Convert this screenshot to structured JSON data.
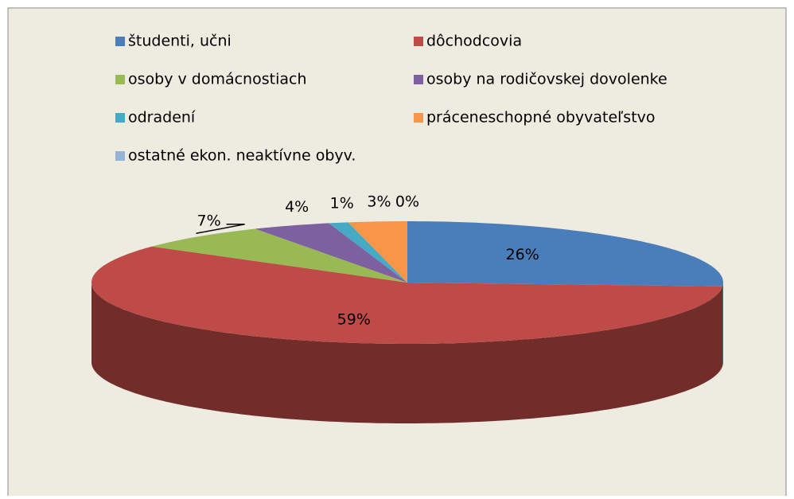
{
  "chart_data": {
    "type": "pie3d",
    "categories": [
      "študenti, učni",
      "dôchodcovia",
      "osoby v domácnostiach",
      "osoby na rodičovskej dovolenke",
      "odradení",
      "práceneschopné obyvateľstvo",
      "ostatné ekon. neaktívne obyv."
    ],
    "values": [
      26,
      59,
      7,
      4,
      1,
      3,
      0
    ],
    "value_labels": [
      "26%",
      "59%",
      "7%",
      "4%",
      "1%",
      "3%",
      "0%"
    ],
    "colors": [
      "#4a7ebb",
      "#be4b48",
      "#98b954",
      "#7d60a0",
      "#46aac5",
      "#f79646",
      "#95b3d7"
    ],
    "legend": "top"
  }
}
